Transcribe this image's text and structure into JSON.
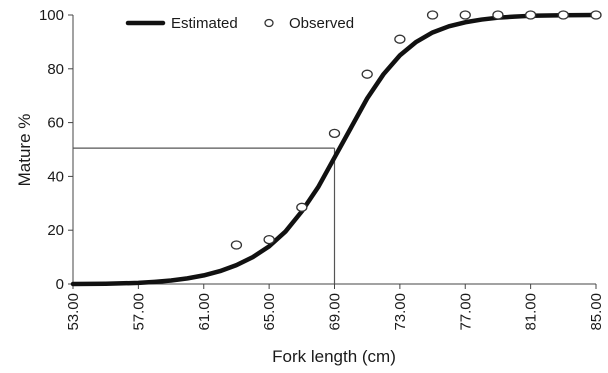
{
  "chart_data": {
    "type": "line",
    "xlabel": "Fork length (cm)",
    "ylabel": "Mature %",
    "xlim": [
      53,
      85
    ],
    "ylim": [
      0,
      100
    ],
    "x_ticks": [
      "53.00",
      "57.00",
      "61.00",
      "65.00",
      "69.00",
      "73.00",
      "77.00",
      "81.00",
      "85.00"
    ],
    "y_ticks": [
      "0",
      "20",
      "40",
      "60",
      "80",
      "100"
    ],
    "x_tick_values": [
      53,
      57,
      61,
      65,
      69,
      73,
      77,
      81,
      85
    ],
    "y_tick_values": [
      0,
      20,
      40,
      60,
      80,
      100
    ],
    "grid": false,
    "legend_position": "top",
    "series": [
      {
        "name": "Estimated",
        "style": "line",
        "color": "#111111",
        "x": [
          53,
          55,
          57,
          58,
          59,
          60,
          61,
          62,
          63,
          64,
          65,
          66,
          67,
          68,
          69,
          70,
          71,
          72,
          73,
          74,
          75,
          76,
          77,
          78,
          79,
          80,
          81,
          83,
          85
        ],
        "y": [
          0,
          0.1,
          0.4,
          0.8,
          1.3,
          2.1,
          3.2,
          4.8,
          7.0,
          10.0,
          14.0,
          19.5,
          27.0,
          36.0,
          47.0,
          58.0,
          69.0,
          78.0,
          85.0,
          90.0,
          93.5,
          95.8,
          97.3,
          98.3,
          99.0,
          99.4,
          99.7,
          99.9,
          100
        ]
      },
      {
        "name": "Observed",
        "style": "markers",
        "color": "#111111",
        "x": [
          63,
          65,
          67,
          69,
          71,
          73,
          75,
          77,
          79,
          81,
          83,
          85
        ],
        "y": [
          14.5,
          16.5,
          28.5,
          56,
          78,
          91,
          100,
          100,
          100,
          100,
          100,
          100
        ]
      }
    ],
    "reference_lines": {
      "x": 69,
      "y": 50.5,
      "color": "#555555"
    }
  }
}
